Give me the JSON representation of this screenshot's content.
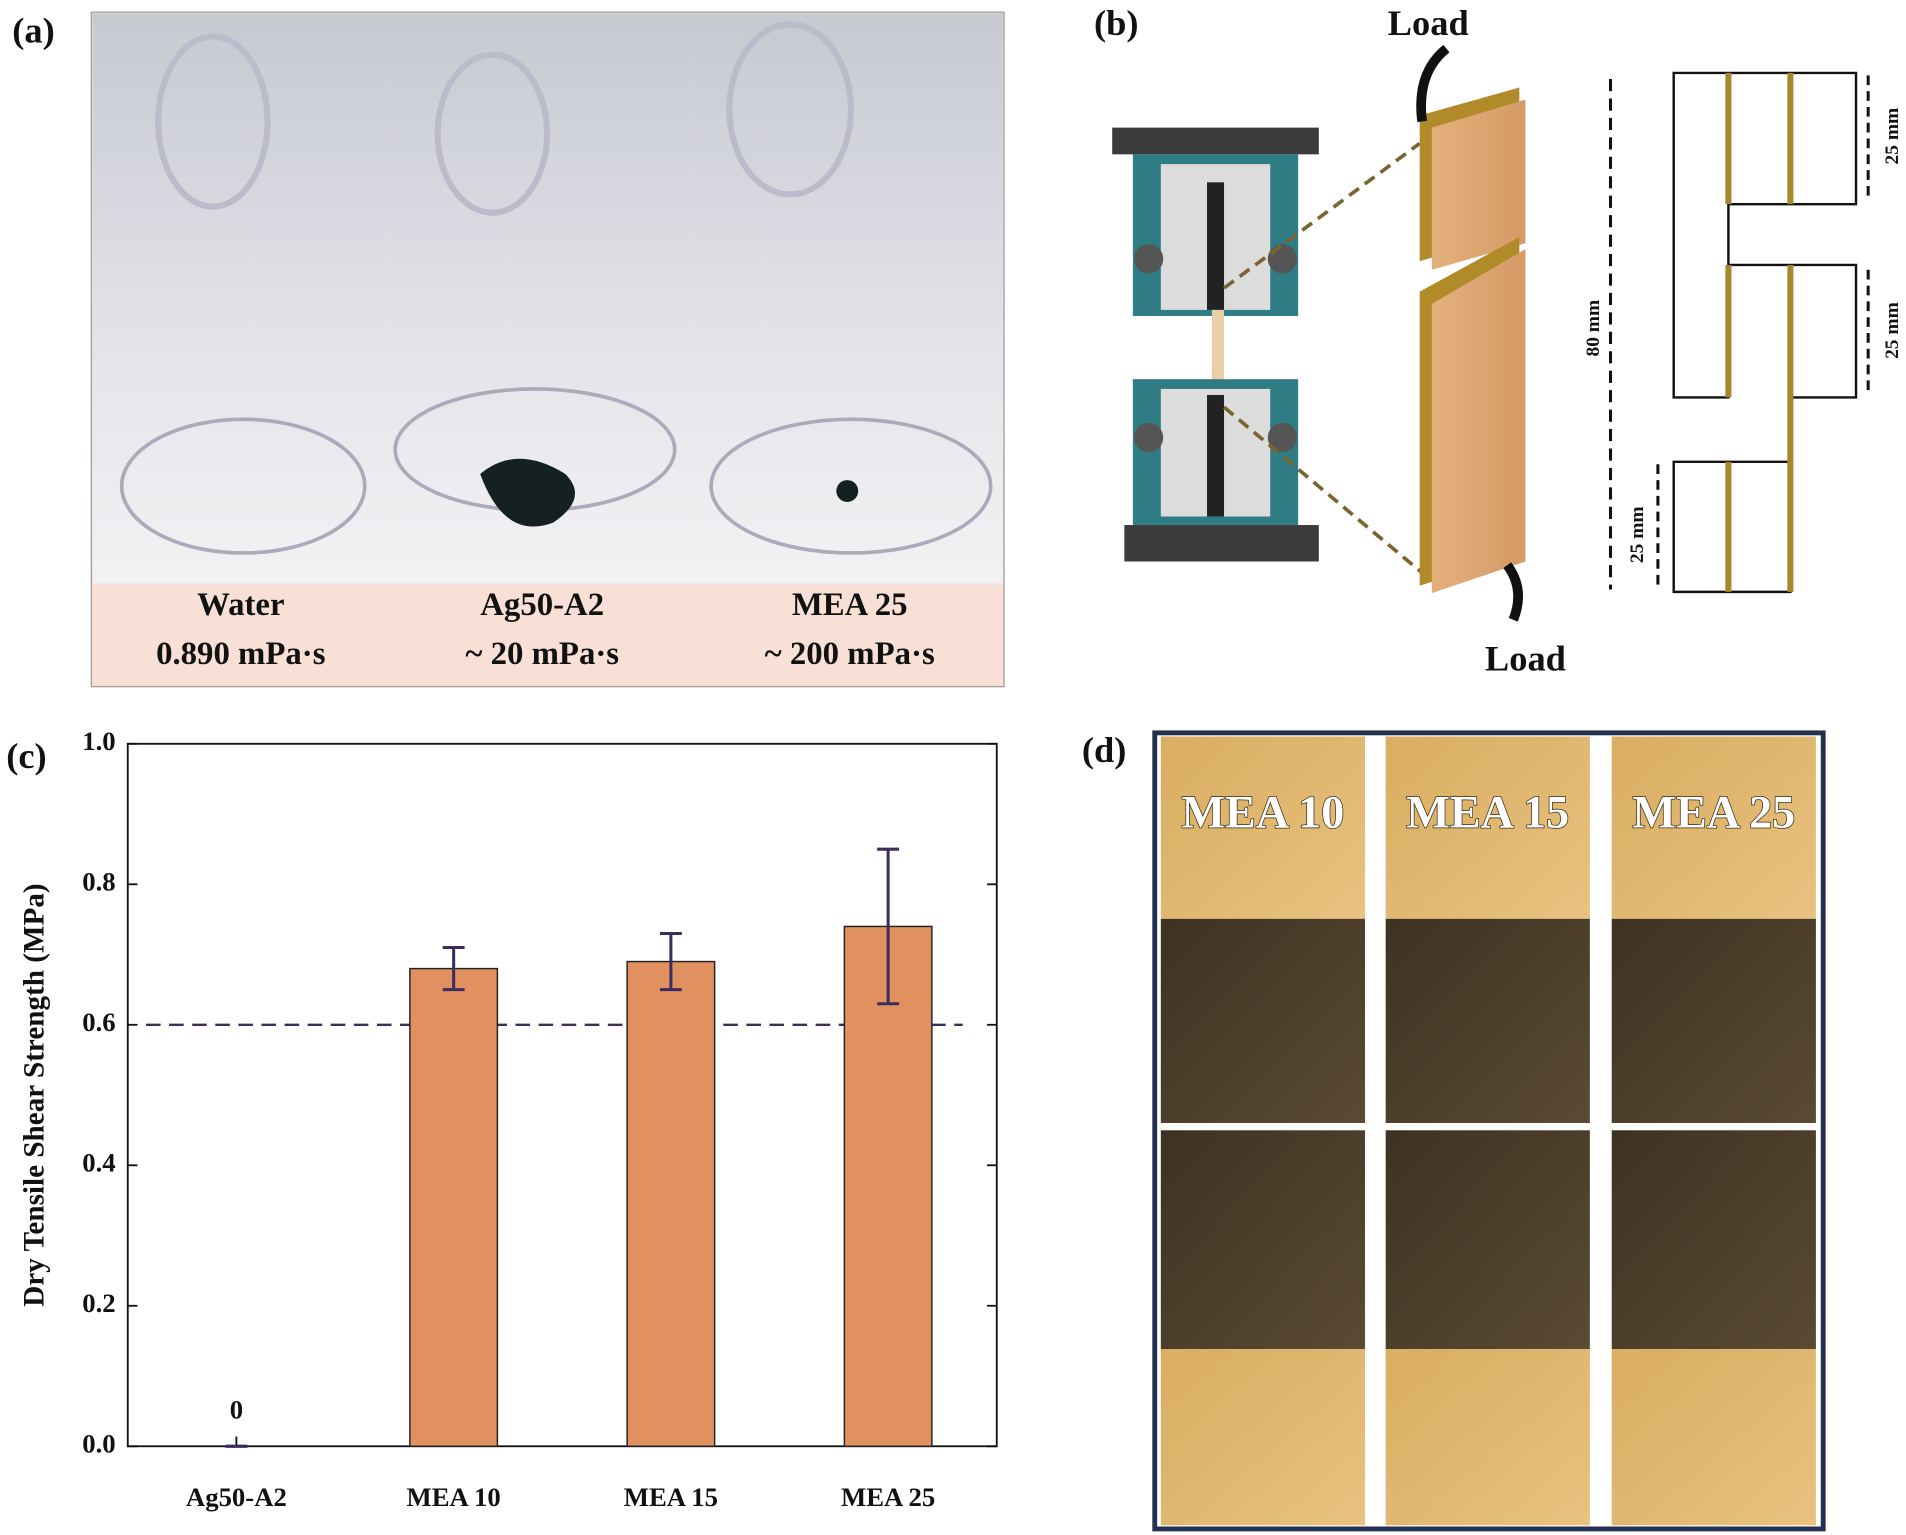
{
  "panel_a": {
    "label": "(a)",
    "captions": [
      {
        "name": "Water",
        "viscosity": "0.890 mPa·s"
      },
      {
        "name": "Ag50-A2",
        "viscosity": "~ 20 mPa·s"
      },
      {
        "name": "MEA 25",
        "viscosity": "~ 200 mPa·s"
      }
    ]
  },
  "panel_b": {
    "label": "(b)",
    "load_top": "Load",
    "load_bottom": "Load",
    "total_length": "80 mm",
    "overlap_top": "25 mm",
    "overlap_middle": "25 mm",
    "overlap_bottom": "25 mm"
  },
  "chart_data": {
    "type": "bar",
    "label": "(c)",
    "y_label": "Dry Tensile Shear Strength (MPa)",
    "categories": [
      "Ag50-A2",
      "MEA 10",
      "MEA 15",
      "MEA 25"
    ],
    "values": [
      0,
      0.68,
      0.69,
      0.74
    ],
    "errors": [
      0,
      0.03,
      0.04,
      0.11
    ],
    "value_labels": [
      "0",
      null,
      null,
      null
    ],
    "color": "#e0915f",
    "error_color": "#3d2c5e",
    "reference_line": 0.6,
    "ylim": [
      0,
      1
    ],
    "yticks": [
      {
        "value": 0,
        "label": "0.0"
      },
      0.2,
      0.4,
      0.6,
      0.8,
      {
        "value": 1,
        "label": "1.0"
      }
    ]
  },
  "panel_d": {
    "label": "(d)",
    "samples": [
      "MEA 10",
      "MEA 15",
      "MEA 25"
    ]
  }
}
